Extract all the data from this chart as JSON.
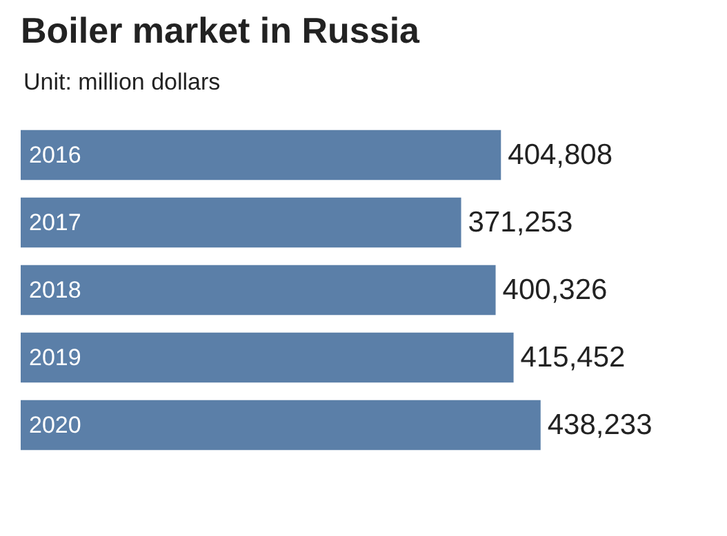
{
  "chart_data": {
    "type": "bar",
    "orientation": "horizontal",
    "title": "Boiler market in Russia",
    "subtitle": "Unit: million dollars",
    "categories": [
      "2016",
      "2017",
      "2018",
      "2019",
      "2020"
    ],
    "values": [
      404808,
      371253,
      400326,
      415452,
      438233
    ],
    "value_labels": [
      "404,808",
      "371,253",
      "400,326",
      "415,452",
      "438,233"
    ],
    "color": "#5b7fa8"
  }
}
